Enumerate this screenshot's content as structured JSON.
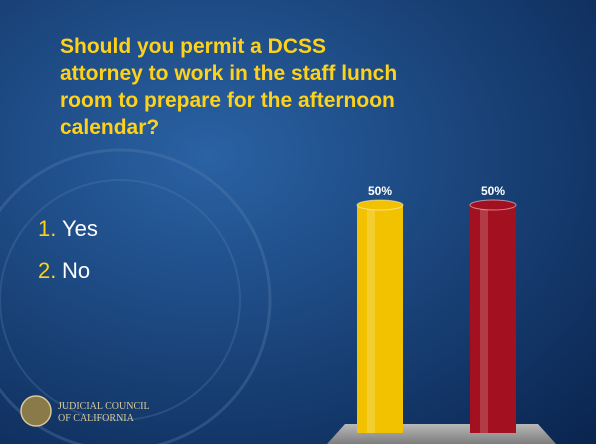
{
  "chart_data": {
    "type": "bar",
    "title": [
      "Should you permit a DCSS",
      "attorney to work in the staff lunch",
      "room to prepare for the afternoon",
      "calendar?"
    ],
    "categories": [
      null,
      null
    ],
    "values": [
      50,
      50
    ],
    "value_labels": [
      "50%",
      "50%"
    ],
    "colors": [
      "#f2c200",
      "#a3101f"
    ]
  },
  "options": [
    {
      "number": "1.",
      "text": "Yes"
    },
    {
      "number": "2.",
      "text": "No"
    }
  ],
  "logo": [
    "JUDICIAL COUNCIL",
    "OF CALIFORNIA"
  ]
}
